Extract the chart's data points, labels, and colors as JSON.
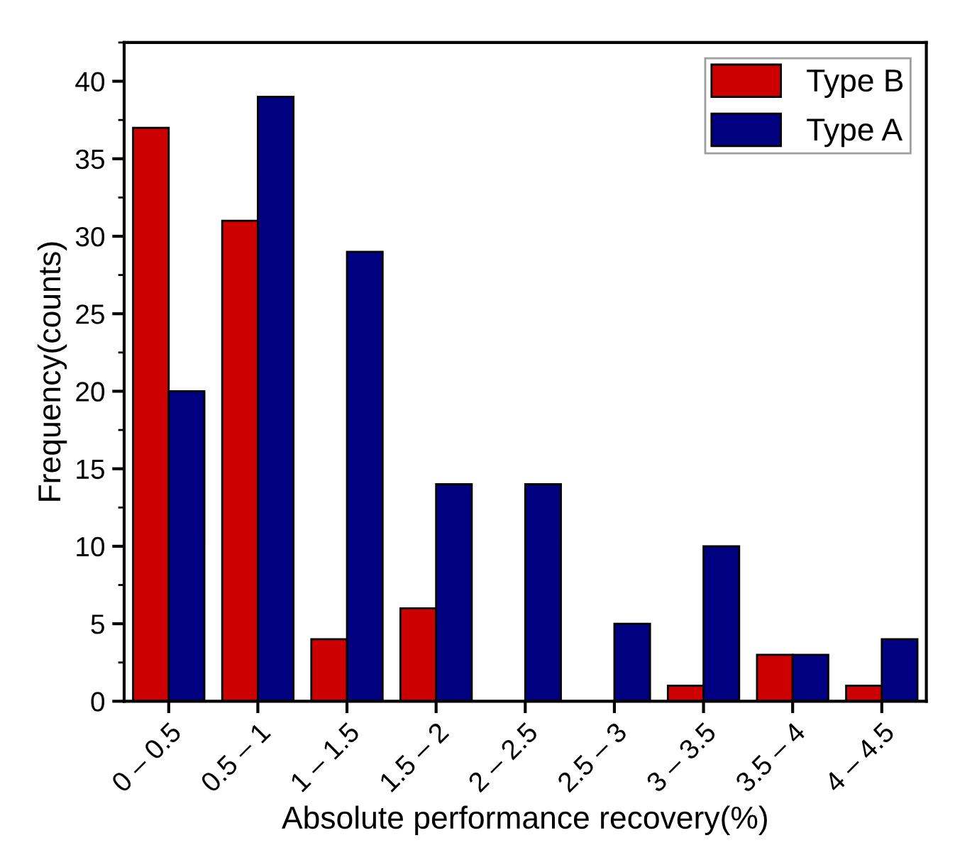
{
  "chart_data": {
    "type": "bar",
    "xlabel": "Absolute performance recovery(%)",
    "ylabel": "Frequency(counts)",
    "categories": [
      "0 – 0.5",
      "0.5 – 1",
      "1 – 1.5",
      "1.5 – 2",
      "2 – 2.5",
      "2.5 – 3",
      "3 – 3.5",
      "3.5 – 4",
      "4 – 4.5"
    ],
    "series": [
      {
        "name": "Type B",
        "color": "#cc0000",
        "values": [
          37,
          31,
          4,
          6,
          0,
          0,
          1,
          3,
          1
        ]
      },
      {
        "name": "Type A",
        "color": "#000080",
        "values": [
          20,
          39,
          29,
          14,
          14,
          5,
          10,
          3,
          4
        ]
      }
    ],
    "ylim": [
      0,
      42.5
    ],
    "yticks": [
      0,
      5,
      10,
      15,
      20,
      25,
      30,
      35,
      40
    ],
    "grid": false,
    "legend": "top right"
  }
}
